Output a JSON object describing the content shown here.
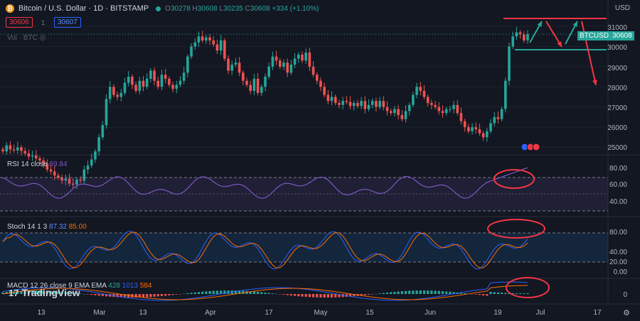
{
  "header": {
    "symbol_title": "Bitcoin / U.S. Dollar · 1D · BITSTAMP",
    "ohlc": {
      "o_label": "O",
      "o": "30278",
      "h_label": "H",
      "h": "30608",
      "l_label": "L",
      "l": "30235",
      "c_label": "C",
      "c": "30608",
      "change": "+334 (+1.10%)"
    },
    "sell_price": "30606",
    "quantity": "1",
    "buy_price": "30607",
    "volume_label": "Vol · BTC",
    "currency": "USD"
  },
  "price_tag": {
    "symbol": "BTCUSD",
    "value": "30608"
  },
  "colors": {
    "up": "#26a69a",
    "down": "#ef5350",
    "rsi": "#7e57c2",
    "stoch_k": "#2962ff",
    "stoch_d": "#ff6d00",
    "annotation": "#f23645",
    "arrow_green": "#26a69a"
  },
  "chart_data": [
    {
      "type": "candlestick",
      "title": "Bitcoin / U.S. Dollar · 1D · BITSTAMP",
      "ylim": [
        24700,
        31600
      ],
      "y_ticks": [
        "31000",
        "30000",
        "29000",
        "28000",
        "27000",
        "26000",
        "25000"
      ],
      "x_ticks": [
        "13",
        "Mar",
        "13",
        "Apr",
        "17",
        "May",
        "15",
        "Jun",
        "19",
        "Jul",
        "17"
      ],
      "close": [
        24800,
        25100,
        24900,
        24850,
        25000,
        24820,
        24700,
        24550,
        24600,
        24450,
        24350,
        24200,
        23900,
        23800,
        23600,
        23500,
        23350,
        23450,
        23200,
        23150,
        23400,
        23350,
        23900,
        24100,
        24400,
        24800,
        25500,
        26100,
        27400,
        28000,
        27600,
        27500,
        27700,
        28200,
        28500,
        28100,
        27800,
        28300,
        28000,
        28400,
        28800,
        28300,
        28000,
        28600,
        28400,
        28100,
        27900,
        28100,
        28300,
        28700,
        29500,
        30000,
        30200,
        30500,
        30300,
        30450,
        30300,
        30100,
        29800,
        30300,
        29400,
        28800,
        29100,
        29200,
        28700,
        28300,
        28100,
        27800,
        28400,
        27700,
        28000,
        28500,
        29000,
        29500,
        29300,
        29000,
        29200,
        28700,
        29100,
        29400,
        29600,
        29300,
        29700,
        29000,
        28600,
        28300,
        28000,
        27600,
        27300,
        27500,
        27200,
        27100,
        27300,
        27250,
        27050,
        27200,
        27050,
        27300,
        26900,
        27100,
        27300,
        27000,
        27300,
        27000,
        26800,
        26700,
        26900,
        26600,
        26400,
        26800,
        27100,
        27600,
        28000,
        27800,
        27500,
        27200,
        27100,
        27000,
        26800,
        26700,
        26900,
        26900,
        27100,
        26700,
        26300,
        26000,
        25800,
        26000,
        25900,
        25700,
        25500,
        25800,
        26200,
        26500,
        26400,
        26900,
        28300,
        30000,
        30500,
        30700,
        30600,
        30300,
        30608
      ],
      "open_first": 24900
    },
    {
      "type": "line",
      "title": "RSI 14 close",
      "series": [
        {
          "name": "RSI",
          "value_label": "69.84"
        }
      ],
      "ylim": [
        26,
        86
      ],
      "y_ticks": [
        "80.00",
        "60.00",
        "40.00"
      ]
    },
    {
      "type": "line",
      "title": "Stoch 14 1 3",
      "series": [
        {
          "name": "%K",
          "value_label": "87.32"
        },
        {
          "name": "%D",
          "value_label": "85.00"
        }
      ],
      "ylim": [
        -6,
        113
      ],
      "y_ticks": [
        "80.00",
        "40.00",
        "20.00",
        "0.00"
      ]
    },
    {
      "type": "bar",
      "title": "MACD 12 26 close 9 EMA EMA",
      "series": [
        {
          "name": "Histogram",
          "value_label": "428"
        },
        {
          "name": "MACD",
          "value_label": "1013"
        },
        {
          "name": "Signal",
          "value_label": "584"
        }
      ],
      "y_ticks": [
        "0"
      ]
    }
  ],
  "watermark": "TradingView"
}
